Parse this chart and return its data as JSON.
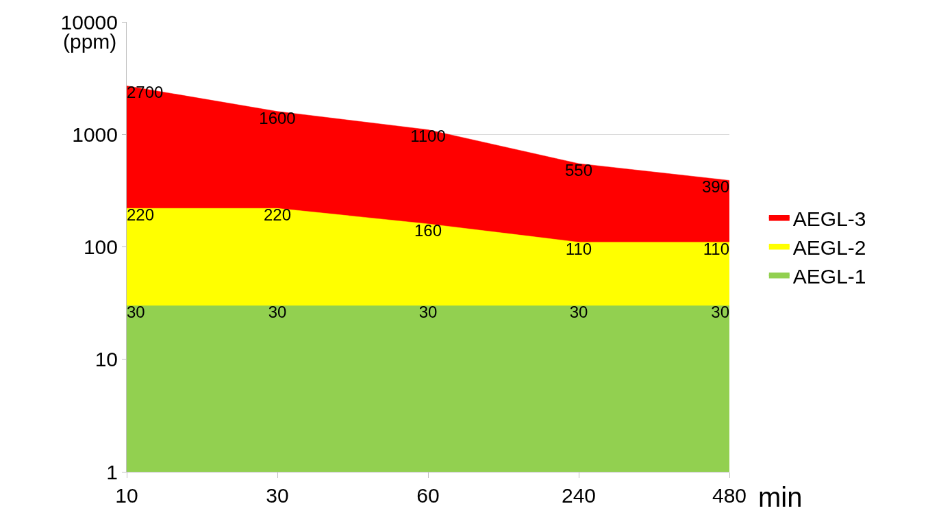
{
  "chart_data": {
    "type": "area",
    "categories": [
      "10",
      "30",
      "60",
      "240",
      "480"
    ],
    "xlabel": "min",
    "ylabel": "(ppm)",
    "log": "y",
    "ylim": [
      1,
      10000
    ],
    "yticks": [
      1,
      10,
      100,
      1000,
      10000
    ],
    "grid": "y",
    "legend": "right",
    "data_labels": true,
    "series": [
      {
        "name": "AEGL-3",
        "color": "#ff0000",
        "values": [
          2700,
          1600,
          1100,
          550,
          390
        ]
      },
      {
        "name": "AEGL-2",
        "color": "#ffff00",
        "values": [
          220,
          220,
          160,
          110,
          110
        ]
      },
      {
        "name": "AEGL-1",
        "color": "#92d050",
        "values": [
          30,
          30,
          30,
          30,
          30
        ]
      }
    ]
  }
}
